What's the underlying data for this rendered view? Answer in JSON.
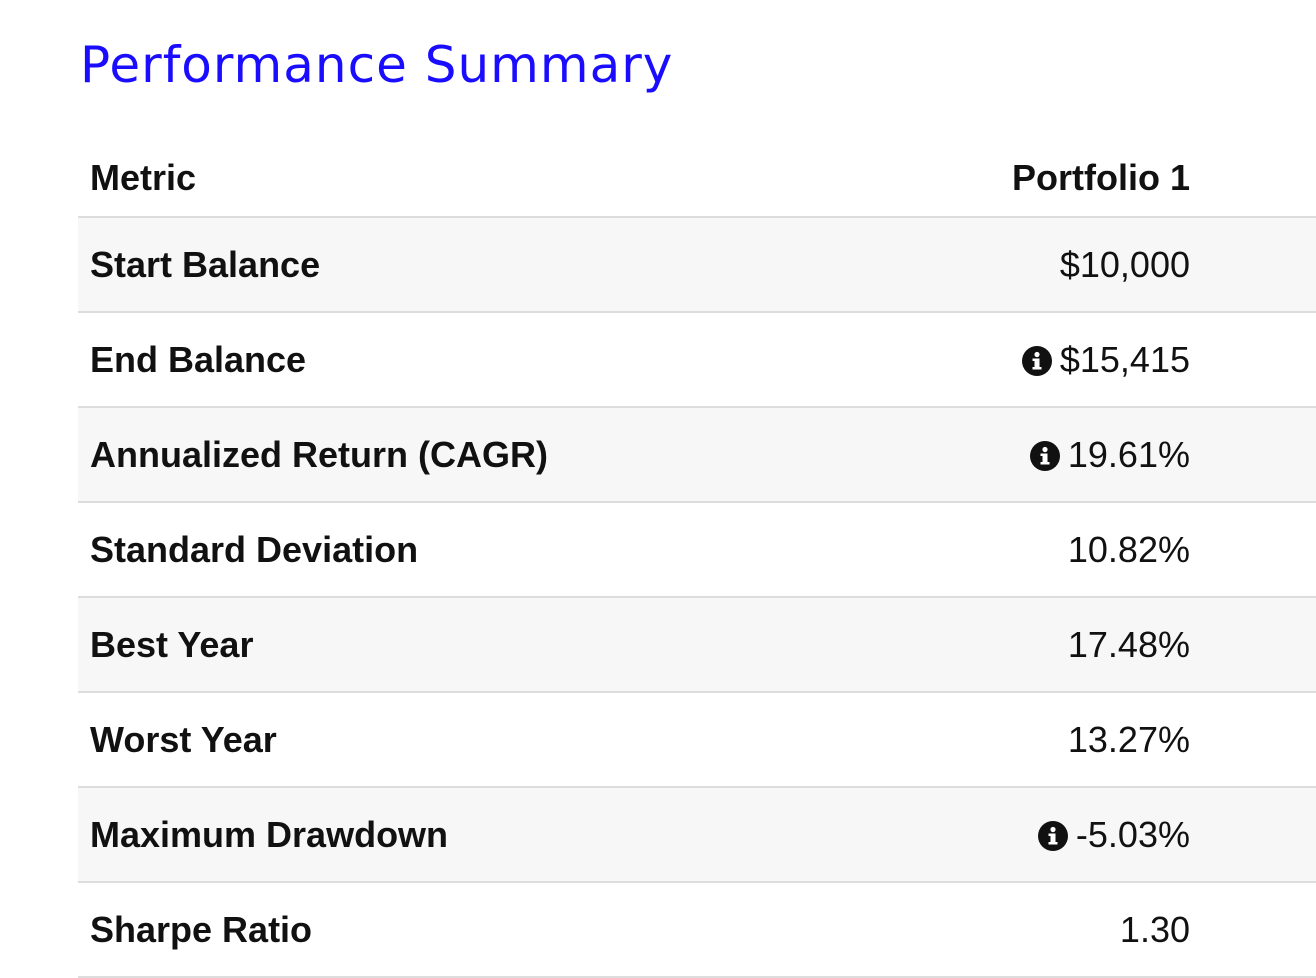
{
  "header": {
    "title": "Performance Summary"
  },
  "table": {
    "columns": [
      "Metric",
      "Portfolio 1"
    ],
    "rows": [
      [
        "Start Balance",
        "$10,000"
      ],
      [
        "End Balance",
        "$15,415"
      ],
      [
        "Annualized Return (CAGR)",
        "19.61%"
      ],
      [
        "Standard Deviation",
        "10.82%"
      ],
      [
        "Best Year",
        "17.48%"
      ],
      [
        "Worst Year",
        "13.27%"
      ],
      [
        "Maximum Drawdown",
        "-5.03%"
      ],
      [
        "Sharpe Ratio",
        "1.30"
      ]
    ]
  }
}
